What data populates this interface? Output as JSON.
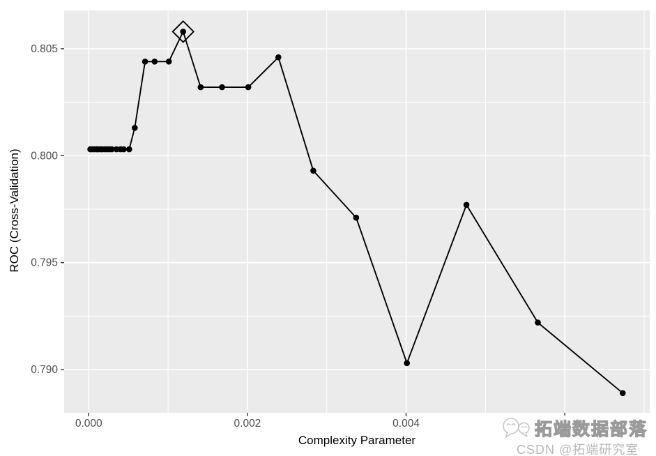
{
  "chart_data": {
    "type": "line",
    "title": "",
    "xlabel": "Complexity Parameter",
    "ylabel": "ROC (Cross-Validation)",
    "xlim": [
      -0.00031,
      0.00707
    ],
    "ylim": [
      0.78798,
      0.80679
    ],
    "x_major_ticks": [
      0.0,
      0.002,
      0.004,
      0.006
    ],
    "x_tick_labels": [
      "0.000",
      "0.002",
      "0.004",
      "0.006"
    ],
    "x_minor_ticks": [
      0.001,
      0.003,
      0.005,
      0.007
    ],
    "y_major_ticks": [
      0.79,
      0.795,
      0.8,
      0.805
    ],
    "y_tick_labels": [
      "0.790",
      "0.795",
      "0.800",
      "0.805"
    ],
    "y_minor_ticks": [
      0.7925,
      0.7975,
      0.8025
    ],
    "grid": true,
    "legend": false,
    "series": [
      {
        "name": "ROC (Cross-Validation)",
        "points": [
          [
            2e-05,
            0.8003
          ],
          [
            4e-05,
            0.8003
          ],
          [
            7e-05,
            0.8003
          ],
          [
            0.0001,
            0.8003
          ],
          [
            0.00012,
            0.8003
          ],
          [
            0.00015,
            0.8003
          ],
          [
            0.00017,
            0.8003
          ],
          [
            0.0002,
            0.8003
          ],
          [
            0.00023,
            0.8003
          ],
          [
            0.00026,
            0.8003
          ],
          [
            0.00029,
            0.8003
          ],
          [
            0.00035,
            0.8003
          ],
          [
            0.0004,
            0.8003
          ],
          [
            0.00044,
            0.8003
          ],
          [
            0.00051,
            0.8003
          ],
          [
            0.00058,
            0.8013
          ],
          [
            0.00071,
            0.8044
          ],
          [
            0.00083,
            0.8044
          ],
          [
            0.00101,
            0.8044
          ],
          [
            0.00119,
            0.8058
          ],
          [
            0.00141,
            0.8032
          ],
          [
            0.00168,
            0.8032
          ],
          [
            0.00201,
            0.8032
          ],
          [
            0.00239,
            0.8046
          ],
          [
            0.00283,
            0.7993
          ],
          [
            0.00337,
            0.7971
          ],
          [
            0.00401,
            0.7903
          ],
          [
            0.00476,
            0.7977
          ],
          [
            0.00566,
            0.7922
          ],
          [
            0.00673,
            0.7889
          ]
        ]
      }
    ],
    "best_point": {
      "cp": 0.00119,
      "roc": 0.8058,
      "marker": "open-diamond"
    },
    "colors": {
      "panel_background": "#EBEBEB",
      "gridline": "#FFFFFF",
      "line": "#000000",
      "point": "#000000",
      "tick_label": "#4D4D4D",
      "axis_title": "#000000",
      "tick_mark": "#333333"
    }
  },
  "watermark": {
    "title": "拓端数据部落",
    "subtitle": "CSDN @拓端研究室",
    "icon": "chat-bubbles-icon"
  }
}
